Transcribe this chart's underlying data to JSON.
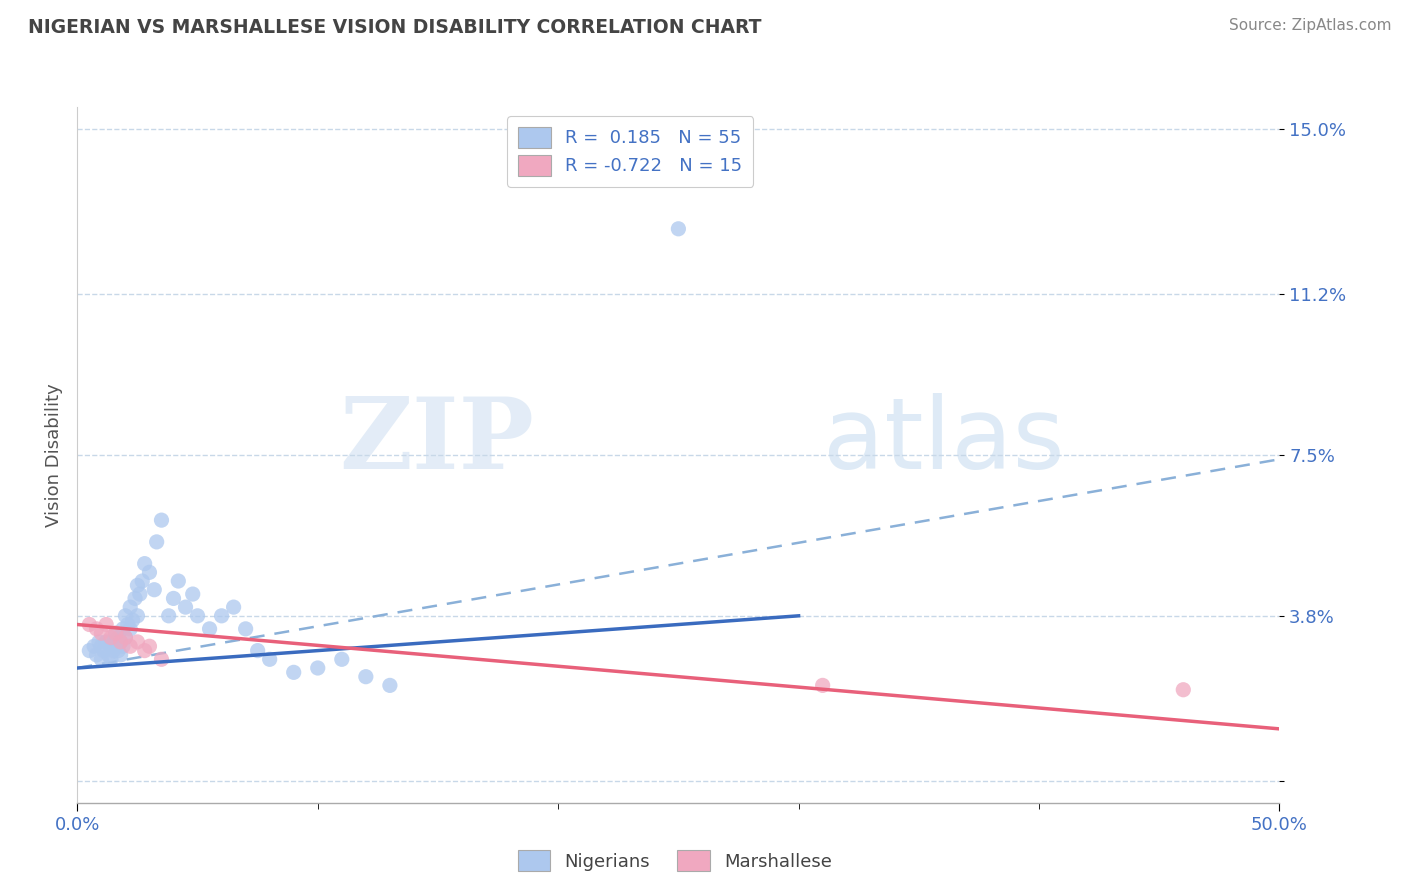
{
  "title": "NIGERIAN VS MARSHALLESE VISION DISABILITY CORRELATION CHART",
  "source": "Source: ZipAtlas.com",
  "ylabel": "Vision Disability",
  "xlim": [
    0.0,
    0.5
  ],
  "ylim": [
    -0.005,
    0.155
  ],
  "ytick_vals": [
    0.0,
    0.038,
    0.075,
    0.112,
    0.15
  ],
  "ytick_labels": [
    "",
    "3.8%",
    "7.5%",
    "11.2%",
    "15.0%"
  ],
  "nigerian_color": "#adc8ee",
  "marshallese_color": "#f0a8c0",
  "nigerian_R": 0.185,
  "nigerian_N": 55,
  "marshallese_R": -0.722,
  "marshallese_N": 15,
  "nigerian_line_color": "#3a6bbf",
  "marshallese_line_color": "#e8607a",
  "dashed_line_color": "#8ab0d8",
  "grid_color": "#c8d8e8",
  "background_color": "#ffffff",
  "watermark_zip": "ZIP",
  "watermark_atlas": "atlas",
  "title_color": "#444444",
  "source_color": "#888888",
  "axis_label_color": "#4472c4",
  "nigerian_x": [
    0.005,
    0.007,
    0.008,
    0.009,
    0.01,
    0.01,
    0.011,
    0.012,
    0.013,
    0.014,
    0.014,
    0.015,
    0.015,
    0.016,
    0.016,
    0.017,
    0.017,
    0.018,
    0.018,
    0.019,
    0.019,
    0.02,
    0.02,
    0.021,
    0.022,
    0.022,
    0.023,
    0.024,
    0.025,
    0.025,
    0.026,
    0.027,
    0.028,
    0.03,
    0.032,
    0.033,
    0.035,
    0.038,
    0.04,
    0.042,
    0.045,
    0.048,
    0.05,
    0.055,
    0.06,
    0.065,
    0.07,
    0.075,
    0.08,
    0.09,
    0.1,
    0.11,
    0.12,
    0.13,
    0.25
  ],
  "nigerian_y": [
    0.03,
    0.031,
    0.029,
    0.032,
    0.031,
    0.028,
    0.03,
    0.032,
    0.029,
    0.031,
    0.028,
    0.032,
    0.03,
    0.031,
    0.034,
    0.03,
    0.033,
    0.032,
    0.029,
    0.035,
    0.031,
    0.038,
    0.033,
    0.036,
    0.04,
    0.035,
    0.037,
    0.042,
    0.045,
    0.038,
    0.043,
    0.046,
    0.05,
    0.048,
    0.044,
    0.055,
    0.06,
    0.038,
    0.042,
    0.046,
    0.04,
    0.043,
    0.038,
    0.035,
    0.038,
    0.04,
    0.035,
    0.03,
    0.028,
    0.025,
    0.026,
    0.028,
    0.024,
    0.022,
    0.127
  ],
  "marshallese_x": [
    0.005,
    0.008,
    0.01,
    0.012,
    0.014,
    0.016,
    0.018,
    0.02,
    0.022,
    0.025,
    0.028,
    0.03,
    0.035,
    0.31,
    0.46
  ],
  "marshallese_y": [
    0.036,
    0.035,
    0.034,
    0.036,
    0.033,
    0.034,
    0.032,
    0.033,
    0.031,
    0.032,
    0.03,
    0.031,
    0.028,
    0.022,
    0.021
  ],
  "nig_line_x0": 0.0,
  "nig_line_x1": 0.3,
  "nig_line_y0": 0.026,
  "nig_line_y1": 0.038,
  "dash_line_x0": 0.0,
  "dash_line_x1": 0.5,
  "dash_line_y0": 0.026,
  "dash_line_y1": 0.074,
  "marsh_line_x0": 0.0,
  "marsh_line_x1": 0.5,
  "marsh_line_y0": 0.036,
  "marsh_line_y1": 0.012
}
